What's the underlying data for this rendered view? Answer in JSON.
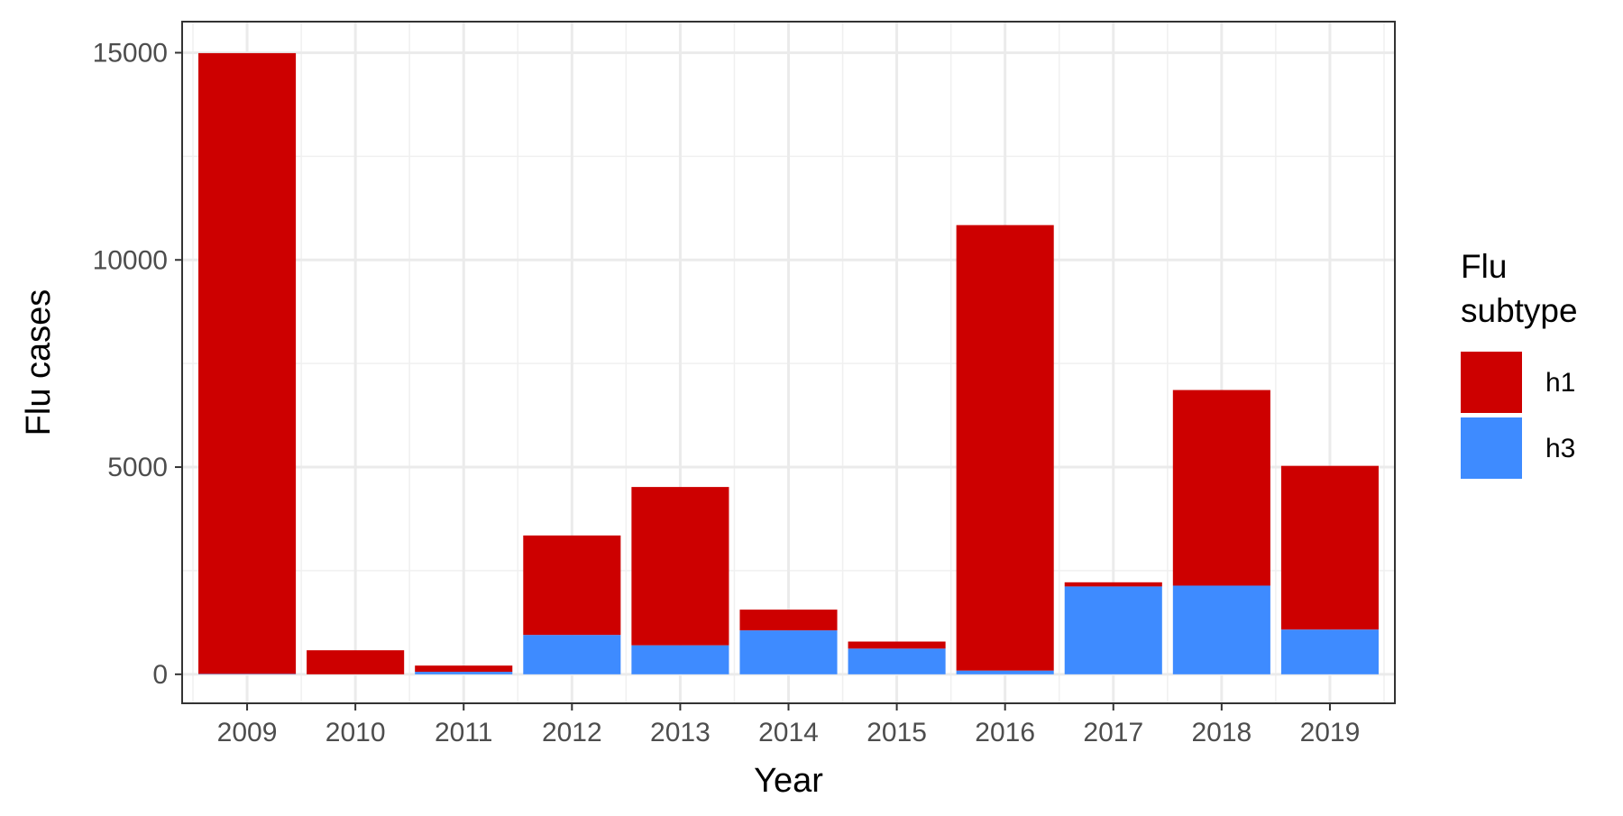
{
  "chart_data": {
    "type": "bar",
    "stacked": true,
    "categories": [
      "2009",
      "2010",
      "2011",
      "2012",
      "2013",
      "2014",
      "2015",
      "2016",
      "2017",
      "2018",
      "2019"
    ],
    "series": [
      {
        "name": "h1",
        "color": "#CD0000",
        "values": [
          14980,
          580,
          150,
          2400,
          3820,
          500,
          170,
          10750,
          100,
          4720,
          3950
        ]
      },
      {
        "name": "h3",
        "color": "#3E8BFF",
        "values": [
          10,
          0,
          60,
          950,
          700,
          1060,
          620,
          90,
          2120,
          2140,
          1080
        ]
      }
    ],
    "xlabel": "Year",
    "ylabel": "Flu cases",
    "ylim": [
      -700,
      15750
    ],
    "yticks": [
      0,
      5000,
      10000,
      15000
    ],
    "ytick_labels": [
      "0",
      "5000",
      "10000",
      "15000"
    ],
    "legend": {
      "title_lines": [
        "Flu",
        "subtype"
      ],
      "position": "right"
    },
    "grid": true,
    "theme": "bw"
  }
}
